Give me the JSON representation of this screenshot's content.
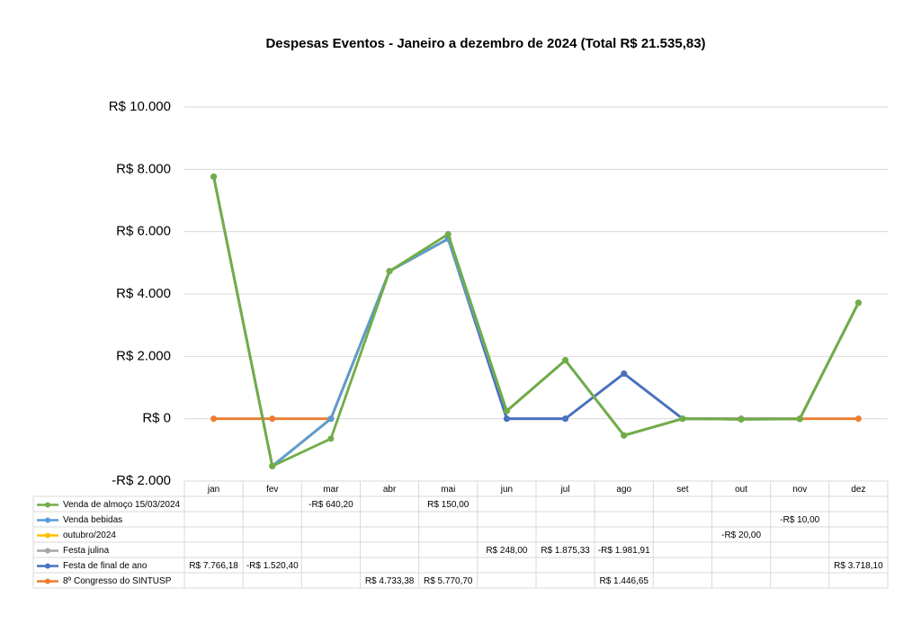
{
  "chart_data": {
    "type": "line",
    "stacked": true,
    "title": "Despesas Eventos - Janeiro a dezembro de 2024 (Total R$ 21.535,83)",
    "categories": [
      "jan",
      "fev",
      "mar",
      "abr",
      "mai",
      "jun",
      "jul",
      "ago",
      "set",
      "out",
      "nov",
      "dez"
    ],
    "ylim": [
      -2000,
      10000
    ],
    "yticks": [
      {
        "value": -2000,
        "label": "-R$ 2.000"
      },
      {
        "value": 0,
        "label": "R$ 0"
      },
      {
        "value": 2000,
        "label": "R$ 2.000"
      },
      {
        "value": 4000,
        "label": "R$ 4.000"
      },
      {
        "value": 6000,
        "label": "R$ 6.000"
      },
      {
        "value": 8000,
        "label": "R$ 8.000"
      },
      {
        "value": 10000,
        "label": "R$ 10.000"
      }
    ],
    "grid": true,
    "series": [
      {
        "name": "Venda de almoço 15/03/2024",
        "color": "#70ad47",
        "values": [
          null,
          null,
          -640.2,
          null,
          150,
          null,
          null,
          null,
          null,
          null,
          null,
          null
        ],
        "value_labels": [
          null,
          null,
          "-R$ 640,20",
          null,
          "R$ 150,00",
          null,
          null,
          null,
          null,
          null,
          null,
          null
        ]
      },
      {
        "name": "Venda bebidas",
        "color": "#5b9bd5",
        "values": [
          null,
          null,
          null,
          null,
          null,
          null,
          null,
          null,
          null,
          null,
          -10,
          null
        ],
        "value_labels": [
          null,
          null,
          null,
          null,
          null,
          null,
          null,
          null,
          null,
          null,
          "-R$ 10,00",
          null
        ]
      },
      {
        "name": "outubro/2024",
        "color": "#ffc000",
        "values": [
          null,
          null,
          null,
          null,
          null,
          null,
          null,
          null,
          null,
          -20,
          null,
          null
        ],
        "value_labels": [
          null,
          null,
          null,
          null,
          null,
          null,
          null,
          null,
          null,
          "-R$ 20,00",
          null,
          null
        ]
      },
      {
        "name": "Festa julina",
        "color": "#a5a5a5",
        "values": [
          null,
          null,
          null,
          null,
          null,
          248,
          1875.33,
          -1981.91,
          null,
          null,
          null,
          null
        ],
        "value_labels": [
          null,
          null,
          null,
          null,
          null,
          "R$ 248,00",
          "R$ 1.875,33",
          "-R$ 1.981,91",
          null,
          null,
          null,
          null
        ]
      },
      {
        "name": "Festa de final de ano",
        "color": "#4472c4",
        "values": [
          7766.18,
          -1520.4,
          null,
          null,
          null,
          null,
          null,
          null,
          null,
          null,
          null,
          3718.1
        ],
        "value_labels": [
          "R$ 7.766,18",
          "-R$ 1.520,40",
          null,
          null,
          null,
          null,
          null,
          null,
          null,
          null,
          null,
          "R$ 3.718,10"
        ]
      },
      {
        "name": "8º Congresso do SINTUSP",
        "color": "#ed7d31",
        "values": [
          null,
          null,
          null,
          4733.38,
          5770.7,
          null,
          null,
          1446.65,
          null,
          null,
          null,
          null
        ],
        "value_labels": [
          null,
          null,
          null,
          "R$ 4.733,38",
          "R$ 5.770,70",
          null,
          null,
          "R$ 1.446,65",
          null,
          null,
          null,
          null
        ]
      }
    ]
  }
}
